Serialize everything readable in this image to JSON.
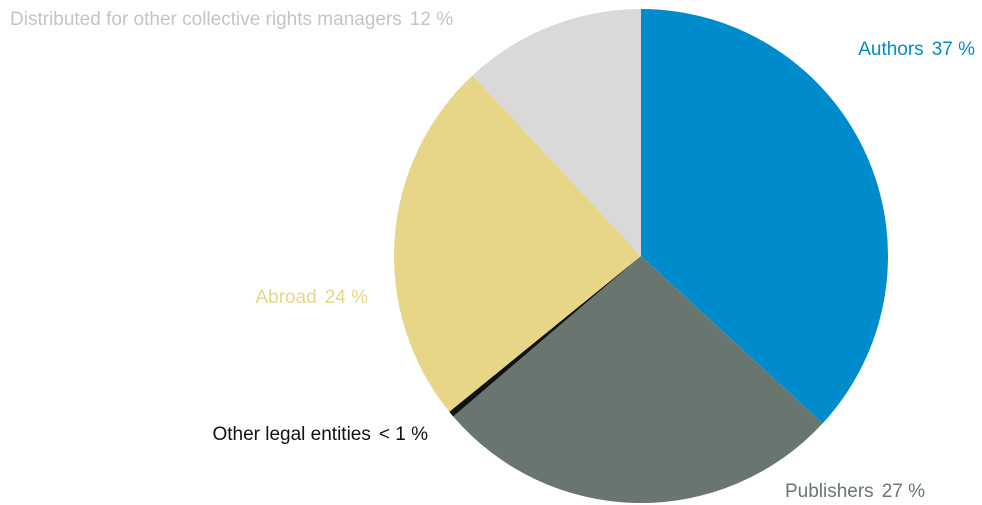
{
  "chart_data": {
    "type": "pie",
    "categories": [
      "Authors",
      "Publishers",
      "Other legal entities",
      "Abroad",
      "Distributed for other collective rights managers"
    ],
    "values": [
      37,
      27,
      0.4,
      24,
      12
    ],
    "value_labels": [
      "37 %",
      "27 %",
      "< 1 %",
      "24 %",
      "12 %"
    ],
    "colors": [
      "#008ccc",
      "#68766f",
      "#111111",
      "#e8d688",
      "#d9d9d9"
    ],
    "label_colors": [
      "#008ccc",
      "#68766f",
      "#111111",
      "#e8d688",
      "#c4c4c4"
    ]
  }
}
